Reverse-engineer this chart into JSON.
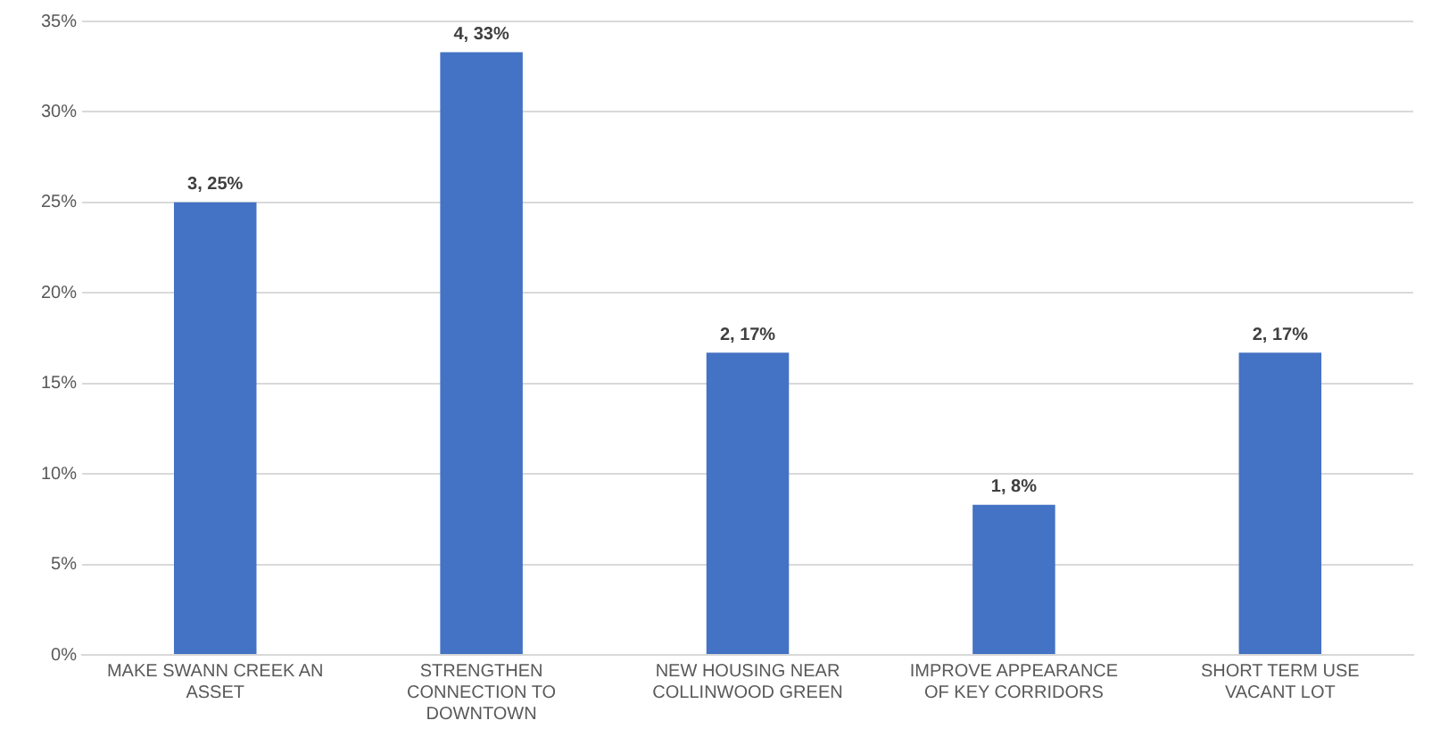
{
  "chart_data": {
    "type": "bar",
    "categories": [
      "MAKE SWANN CREEK AN ASSET",
      "STRENGTHEN CONNECTION TO DOWNTOWN",
      "NEW HOUSING NEAR COLLINWOOD GREEN",
      "IMPROVE APPEARANCE OF KEY CORRIDORS",
      "SHORT TERM USE VACANT LOT"
    ],
    "values": [
      25,
      33.3,
      16.7,
      8.3,
      16.7
    ],
    "value_labels": [
      "3, 25%",
      "4, 33%",
      "2, 17%",
      "1, 8%",
      "2, 17%"
    ],
    "color": "#4472c4",
    "ylim": [
      0,
      35
    ],
    "yticks": [
      {
        "value": 0,
        "label": "0%"
      },
      {
        "value": 5,
        "label": "5%"
      },
      {
        "value": 10,
        "label": "10%"
      },
      {
        "value": 15,
        "label": "15%"
      },
      {
        "value": 20,
        "label": "20%"
      },
      {
        "value": 25,
        "label": "25%"
      },
      {
        "value": 30,
        "label": "30%"
      },
      {
        "value": 35,
        "label": "35%"
      }
    ],
    "grid": "y"
  }
}
